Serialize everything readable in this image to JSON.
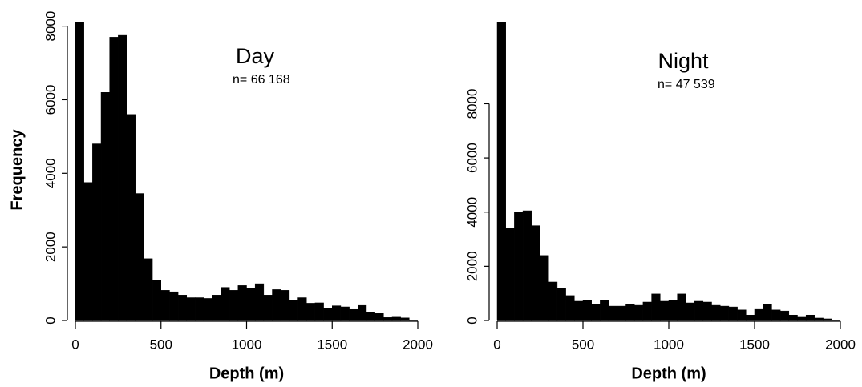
{
  "chart_data": [
    {
      "type": "histogram",
      "title": "Day",
      "annotation": "n= 66 168",
      "ylabel": "Frequency",
      "xlabel": "Depth (m)",
      "bins": [
        0,
        50,
        100,
        150,
        200,
        250,
        300,
        350,
        400,
        450,
        500,
        550,
        600,
        650,
        700,
        750,
        800,
        850,
        900,
        950,
        1000,
        1050,
        1100,
        1150,
        1200,
        1250,
        1300,
        1350,
        1400,
        1450,
        1500,
        1550,
        1600,
        1650,
        1700,
        1750,
        1800,
        1850,
        1900,
        1950,
        2000
      ],
      "counts": [
        8100,
        3750,
        4800,
        6200,
        7700,
        7750,
        5600,
        3450,
        1680,
        1100,
        820,
        780,
        690,
        620,
        620,
        600,
        690,
        900,
        820,
        950,
        880,
        1000,
        690,
        840,
        820,
        560,
        620,
        470,
        480,
        340,
        400,
        370,
        300,
        410,
        230,
        190,
        80,
        90,
        70,
        10
      ],
      "color": "#000000",
      "xlim": [
        0,
        2000
      ],
      "xticks": [
        0,
        500,
        1000,
        1500,
        2000
      ],
      "ylim": [
        0,
        8100
      ],
      "yticks": [
        0,
        2000,
        4000,
        6000,
        8000
      ]
    },
    {
      "type": "histogram",
      "title": "Night",
      "annotation": "n= 47 539",
      "xlabel": "Depth (m)",
      "bins": [
        0,
        50,
        100,
        150,
        200,
        250,
        300,
        350,
        400,
        450,
        500,
        550,
        600,
        650,
        700,
        750,
        800,
        850,
        900,
        950,
        1000,
        1050,
        1100,
        1150,
        1200,
        1250,
        1300,
        1350,
        1400,
        1450,
        1500,
        1550,
        1600,
        1650,
        1700,
        1750,
        1800,
        1850,
        1900,
        1950,
        2000
      ],
      "counts": [
        11000,
        3400,
        4000,
        4050,
        3500,
        2400,
        1420,
        1200,
        920,
        710,
        740,
        600,
        740,
        530,
        530,
        600,
        560,
        680,
        980,
        710,
        740,
        980,
        650,
        710,
        680,
        560,
        530,
        500,
        390,
        200,
        410,
        600,
        390,
        350,
        200,
        120,
        200,
        90,
        60,
        20
      ],
      "color": "#000000",
      "xlim": [
        0,
        2000
      ],
      "xticks": [
        0,
        500,
        1000,
        1500,
        2000
      ],
      "ylim": [
        0,
        11000
      ],
      "yticks": [
        0,
        2000,
        4000,
        6000,
        8000
      ]
    }
  ]
}
